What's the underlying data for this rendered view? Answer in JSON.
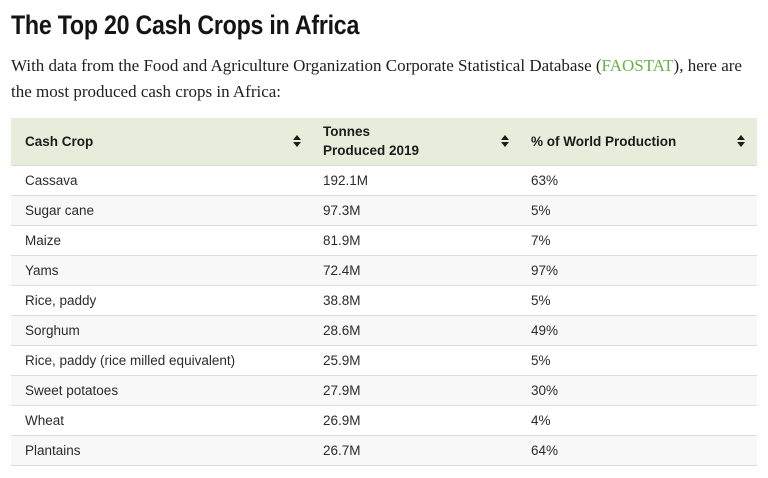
{
  "page": {
    "title": "The Top 20 Cash Crops in Africa",
    "intro": {
      "before_link": "With data from the Food and Agriculture Organization Corporate Statistical Database (",
      "link_text": "FAOSTAT",
      "after_link": "), here are the most produced cash crops in Africa:"
    }
  },
  "colors": {
    "link_green": "#66b345",
    "header_bg": "#e6edda",
    "row_alt_bg": "#f8f8f8",
    "row_border": "#dcdcdc"
  },
  "icons": {
    "sort": "sort-up-down-triangles"
  },
  "table": {
    "columns": [
      {
        "label": "Cash Crop"
      },
      {
        "label": "Tonnes Produced 2019"
      },
      {
        "label": "% of World Production"
      }
    ],
    "rows": [
      {
        "crop": "Cassava",
        "tonnes": "192.1M",
        "world_pct": "63%"
      },
      {
        "crop": "Sugar cane",
        "tonnes": "97.3M",
        "world_pct": "5%"
      },
      {
        "crop": "Maize",
        "tonnes": "81.9M",
        "world_pct": "7%"
      },
      {
        "crop": "Yams",
        "tonnes": "72.4M",
        "world_pct": "97%"
      },
      {
        "crop": "Rice, paddy",
        "tonnes": "38.8M",
        "world_pct": "5%"
      },
      {
        "crop": "Sorghum",
        "tonnes": "28.6M",
        "world_pct": "49%"
      },
      {
        "crop": "Rice, paddy (rice milled equivalent)",
        "tonnes": "25.9M",
        "world_pct": "5%"
      },
      {
        "crop": "Sweet potatoes",
        "tonnes": "27.9M",
        "world_pct": "30%"
      },
      {
        "crop": "Wheat",
        "tonnes": "26.9M",
        "world_pct": "4%"
      },
      {
        "crop": "Plantains",
        "tonnes": "26.7M",
        "world_pct": "64%"
      }
    ]
  }
}
